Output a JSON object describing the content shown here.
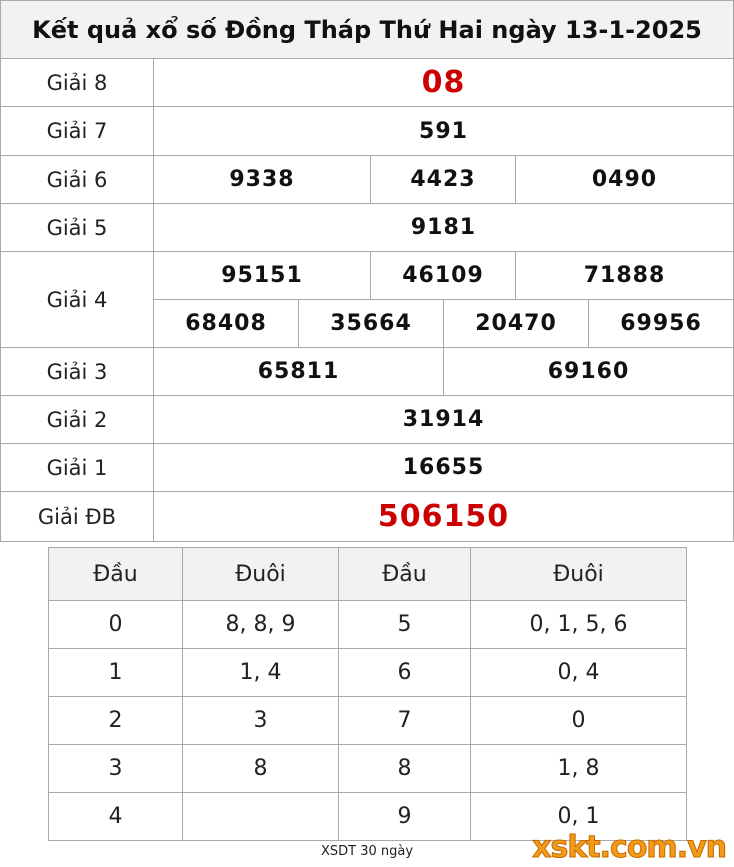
{
  "header": {
    "title": "Kết quả xổ số Đồng Tháp Thứ Hai ngày 13-1-2025"
  },
  "prizes": [
    {
      "label": "Giải 8",
      "numbers": [
        "08"
      ]
    },
    {
      "label": "Giải 7",
      "numbers": [
        "591"
      ]
    },
    {
      "label": "Giải 6",
      "numbers": [
        "9338",
        "4423",
        "0490"
      ]
    },
    {
      "label": "Giải 5",
      "numbers": [
        "9181"
      ]
    },
    {
      "label": "Giải 4",
      "numbers": [
        "95151",
        "46109",
        "71888",
        "68408",
        "35664",
        "20470",
        "69956"
      ]
    },
    {
      "label": "Giải 3",
      "numbers": [
        "65811",
        "69160"
      ]
    },
    {
      "label": "Giải 2",
      "numbers": [
        "31914"
      ]
    },
    {
      "label": "Giải 1",
      "numbers": [
        "16655"
      ]
    },
    {
      "label": "Giải ĐB",
      "numbers": [
        "506150"
      ]
    }
  ],
  "loto": {
    "headers": [
      "Đầu",
      "Đuôi",
      "Đầu",
      "Đuôi"
    ],
    "rows": [
      [
        "0",
        "8, 8, 9",
        "5",
        "0, 1, 5, 6"
      ],
      [
        "1",
        "1, 4",
        "6",
        "0, 4"
      ],
      [
        "2",
        "3",
        "7",
        "0"
      ],
      [
        "3",
        "8",
        "8",
        "1, 8"
      ],
      [
        "4",
        null,
        "9",
        "0, 1"
      ]
    ]
  },
  "footer": "XSDT 30 ngày",
  "logo": "xskt.com.vn"
}
